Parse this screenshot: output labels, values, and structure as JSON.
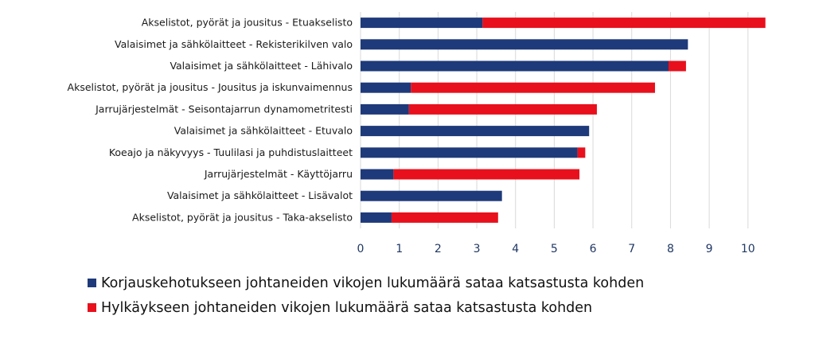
{
  "chart_data": {
    "type": "bar",
    "orientation": "horizontal",
    "stacked": true,
    "categories": [
      "Akselistot, pyörät ja jousitus - Etuakselisto",
      "Valaisimet ja sähkölaitteet - Rekisterikilven valo",
      "Valaisimet ja sähkölaitteet - Lähivalo",
      "Akselistot, pyörät ja jousitus - Jousitus ja iskunvaimennus",
      "Jarrujärjestelmät - Seisontajarrun dynamometritesti",
      "Valaisimet ja sähkölaitteet - Etuvalo",
      "Koeajo ja näkyvyys - Tuulilasi ja puhdistuslaitteet",
      "Jarrujärjestelmät - Käyttöjarru",
      "Valaisimet ja sähkölaitteet - Lisävalot",
      "Akselistot, pyörät ja jousitus - Taka-akselisto"
    ],
    "series": [
      {
        "name": "Korjauskehotukseen johtaneiden vikojen lukumäärä sataa katsastusta kohden",
        "color": "#1f3a7a",
        "values": [
          3.15,
          8.45,
          7.95,
          1.3,
          1.25,
          5.9,
          5.6,
          0.85,
          3.65,
          0.8
        ]
      },
      {
        "name": "Hylkäykseen johtaneiden vikojen lukumäärä sataa katsastusta kohden",
        "color": "#e8101c",
        "values": [
          7.3,
          0.0,
          0.45,
          6.3,
          4.85,
          0.0,
          0.2,
          4.8,
          0.0,
          2.75
        ]
      }
    ],
    "xlim": [
      0,
      10.6
    ],
    "xticks": [
      0,
      1,
      2,
      3,
      4,
      5,
      6,
      7,
      8,
      9,
      10
    ],
    "grid": true,
    "legend_position": "bottom"
  }
}
